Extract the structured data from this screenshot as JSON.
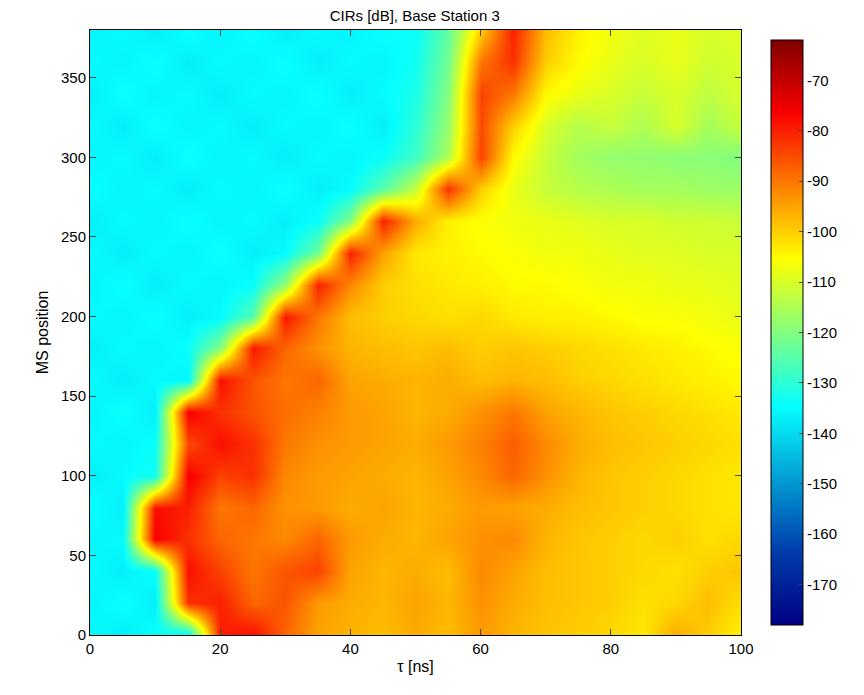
{
  "chart_data": {
    "type": "heatmap",
    "title": "CIRs [dB], Base Station 3",
    "x_label": "τ [ns]",
    "y_label": "MS position",
    "x": [
      0,
      5,
      10,
      15,
      20,
      25,
      30,
      35,
      40,
      45,
      50,
      55,
      60,
      65,
      70,
      75,
      80,
      85,
      90,
      95,
      100
    ],
    "y": [
      0,
      20,
      40,
      60,
      80,
      100,
      120,
      140,
      160,
      180,
      200,
      220,
      240,
      260,
      280,
      300,
      320,
      340,
      360,
      380
    ],
    "cells": [
      [
        -135,
        -137,
        -134,
        -136,
        -80,
        -78,
        -88,
        -95,
        -97,
        -98,
        -96,
        -98,
        -94,
        -97,
        -99,
        -100,
        -101,
        -103,
        -96,
        -100,
        -104
      ],
      [
        -136,
        -134,
        -137,
        -82,
        -80,
        -88,
        -86,
        -94,
        -96,
        -97,
        -95,
        -97,
        -93,
        -96,
        -98,
        -99,
        -100,
        -102,
        -101,
        -98,
        -102
      ],
      [
        -135,
        -137,
        -134,
        -78,
        -84,
        -90,
        -86,
        -84,
        -95,
        -97,
        -96,
        -98,
        -92,
        -95,
        -98,
        -99,
        -100,
        -101,
        -102,
        -100,
        -99
      ],
      [
        -136,
        -135,
        -76,
        -82,
        -88,
        -90,
        -92,
        -88,
        -94,
        -96,
        -97,
        -95,
        -93,
        -92,
        -97,
        -99,
        -100,
        -101,
        -100,
        -102,
        -101
      ],
      [
        -134,
        -137,
        -78,
        -80,
        -90,
        -88,
        -93,
        -94,
        -96,
        -95,
        -97,
        -96,
        -94,
        -95,
        -96,
        -98,
        -99,
        -100,
        -101,
        -102,
        -103
      ],
      [
        -137,
        -135,
        -133,
        -76,
        -84,
        -82,
        -92,
        -94,
        -95,
        -96,
        -97,
        -95,
        -92,
        -88,
        -93,
        -97,
        -99,
        -100,
        -101,
        -102,
        -103
      ],
      [
        -135,
        -136,
        -134,
        -85,
        -78,
        -82,
        -90,
        -93,
        -94,
        -95,
        -96,
        -94,
        -91,
        -87,
        -92,
        -96,
        -98,
        -99,
        -100,
        -101,
        -102
      ],
      [
        -136,
        -134,
        -137,
        -76,
        -82,
        -86,
        -89,
        -91,
        -94,
        -95,
        -97,
        -96,
        -93,
        -90,
        -95,
        -97,
        -99,
        -100,
        -101,
        -102,
        -103
      ],
      [
        -135,
        -137,
        -135,
        -136,
        -78,
        -86,
        -90,
        -88,
        -95,
        -96,
        -97,
        -96,
        -98,
        -97,
        -98,
        -100,
        -101,
        -102,
        -103,
        -104,
        -105
      ],
      [
        -137,
        -135,
        -136,
        -134,
        -120,
        -79,
        -88,
        -93,
        -97,
        -98,
        -99,
        -98,
        -100,
        -99,
        -100,
        -101,
        -102,
        -103,
        -104,
        -105,
        -106
      ],
      [
        -135,
        -136,
        -134,
        -137,
        -135,
        -125,
        -79,
        -90,
        -98,
        -100,
        -101,
        -102,
        -101,
        -103,
        -104,
        -104,
        -105,
        -106,
        -106,
        -107,
        -108
      ],
      [
        -136,
        -134,
        -137,
        -135,
        -136,
        -134,
        -118,
        -80,
        -92,
        -100,
        -102,
        -103,
        -104,
        -105,
        -105,
        -106,
        -107,
        -107,
        -108,
        -108,
        -109
      ],
      [
        -135,
        -137,
        -135,
        -136,
        -134,
        -137,
        -135,
        -122,
        -80,
        -95,
        -103,
        -104,
        -105,
        -106,
        -107,
        -107,
        -108,
        -109,
        -109,
        -110,
        -110
      ],
      [
        -137,
        -135,
        -136,
        -134,
        -136,
        -135,
        -137,
        -134,
        -120,
        -80,
        -96,
        -104,
        -106,
        -107,
        -108,
        -109,
        -110,
        -110,
        -111,
        -111,
        -112
      ],
      [
        -134,
        -136,
        -135,
        -137,
        -135,
        -136,
        -134,
        -137,
        -135,
        -125,
        -112,
        -82,
        -100,
        -108,
        -112,
        -114,
        -115,
        -116,
        -116,
        -117,
        -117
      ],
      [
        -136,
        -135,
        -137,
        -134,
        -136,
        -135,
        -137,
        -135,
        -136,
        -134,
        -128,
        -115,
        -84,
        -105,
        -112,
        -116,
        -118,
        -118,
        -119,
        -119,
        -120
      ],
      [
        -135,
        -137,
        -134,
        -136,
        -135,
        -137,
        -135,
        -136,
        -134,
        -137,
        -130,
        -118,
        -85,
        -100,
        -110,
        -114,
        -112,
        -115,
        -110,
        -116,
        -112
      ],
      [
        -137,
        -134,
        -136,
        -135,
        -137,
        -135,
        -136,
        -134,
        -137,
        -135,
        -132,
        -120,
        -84,
        -90,
        -105,
        -108,
        -110,
        -112,
        -110,
        -113,
        -110
      ],
      [
        -135,
        -136,
        -134,
        -137,
        -135,
        -136,
        -134,
        -137,
        -135,
        -136,
        -133,
        -122,
        -90,
        -82,
        -100,
        -105,
        -108,
        -110,
        -108,
        -111,
        -110
      ],
      [
        -136,
        -135,
        -137,
        -134,
        -136,
        -134,
        -137,
        -135,
        -136,
        -134,
        -134,
        -124,
        -100,
        -80,
        -98,
        -104,
        -107,
        -109,
        -108,
        -110,
        -109
      ]
    ],
    "xlim": [
      0,
      100
    ],
    "xticks": [
      0,
      20,
      40,
      60,
      80,
      100
    ],
    "ylim": [
      0,
      380
    ],
    "yticks": [
      0,
      50,
      100,
      150,
      200,
      250,
      300,
      350
    ],
    "colorbar_range": [
      -178,
      -62
    ],
    "colorbar_ticks": [
      -170,
      -160,
      -150,
      -140,
      -130,
      -120,
      -110,
      -100,
      -90,
      -80,
      -70
    ]
  }
}
